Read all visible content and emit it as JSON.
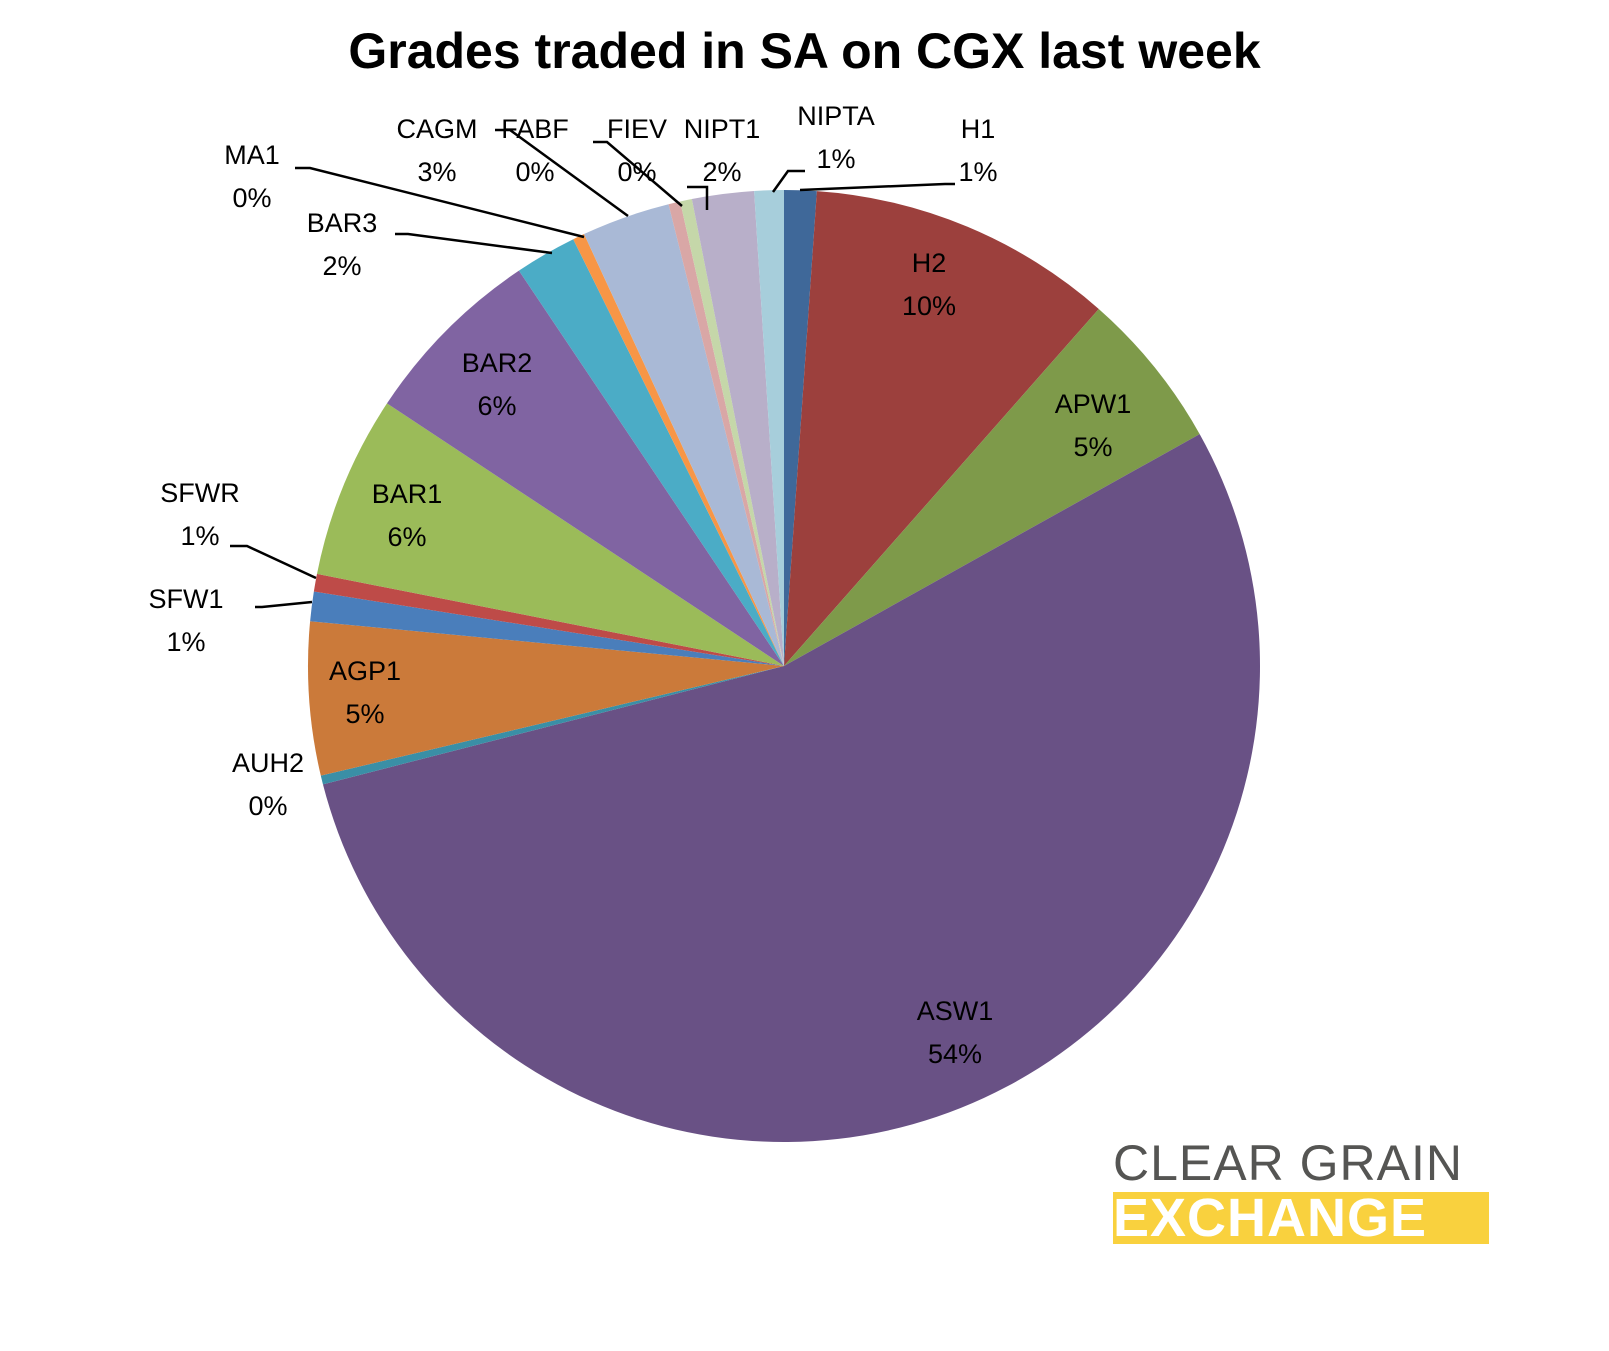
{
  "chart_data": {
    "type": "pie",
    "title": "Grades traded in SA on CGX last week",
    "start_angle": "12 o'clock",
    "direction": "clockwise",
    "slices": [
      {
        "name": "H1",
        "value": 1.1,
        "label": "1%",
        "color": "#3F6899"
      },
      {
        "name": "H2",
        "value": 10.4,
        "label": "10%",
        "color": "#9C403D"
      },
      {
        "name": "APW1",
        "value": 5.4,
        "label": "5%",
        "color": "#7E9A4A"
      },
      {
        "name": "ASW1",
        "value": 54.1,
        "label": "54%",
        "color": "#695185"
      },
      {
        "name": "AUH2",
        "value": 0.3,
        "label": "0%",
        "color": "#3A8FA6"
      },
      {
        "name": "AGP1",
        "value": 5.2,
        "label": "5%",
        "color": "#CB7A3A"
      },
      {
        "name": "SFW1",
        "value": 1.0,
        "label": "1%",
        "color": "#4A7EBB"
      },
      {
        "name": "SFWR",
        "value": 0.6,
        "label": "1%",
        "color": "#BE4B48"
      },
      {
        "name": "BAR1",
        "value": 6.2,
        "label": "6%",
        "color": "#9BBB59"
      },
      {
        "name": "BAR2",
        "value": 6.3,
        "label": "6%",
        "color": "#8064A2"
      },
      {
        "name": "BAR3",
        "value": 2.1,
        "label": "2%",
        "color": "#4BACC6"
      },
      {
        "name": "MA1",
        "value": 0.4,
        "label": "0%",
        "color": "#F79646"
      },
      {
        "name": "CAGM",
        "value": 3.0,
        "label": "3%",
        "color": "#A9B9D6"
      },
      {
        "name": "FABF",
        "value": 0.4,
        "label": "0%",
        "color": "#D9A7A6"
      },
      {
        "name": "FIEV",
        "value": 0.4,
        "label": "0%",
        "color": "#C5D7A9"
      },
      {
        "name": "NIPT1",
        "value": 2.1,
        "label": "2%",
        "color": "#B8AFC9"
      },
      {
        "name": "NIPTA",
        "value": 1.0,
        "label": "1%",
        "color": "#A7CEDB"
      }
    ]
  },
  "logo": {
    "line1": "CLEAR GRAIN",
    "line2": "EXCHANGE",
    "accent": "#F9D13E"
  }
}
